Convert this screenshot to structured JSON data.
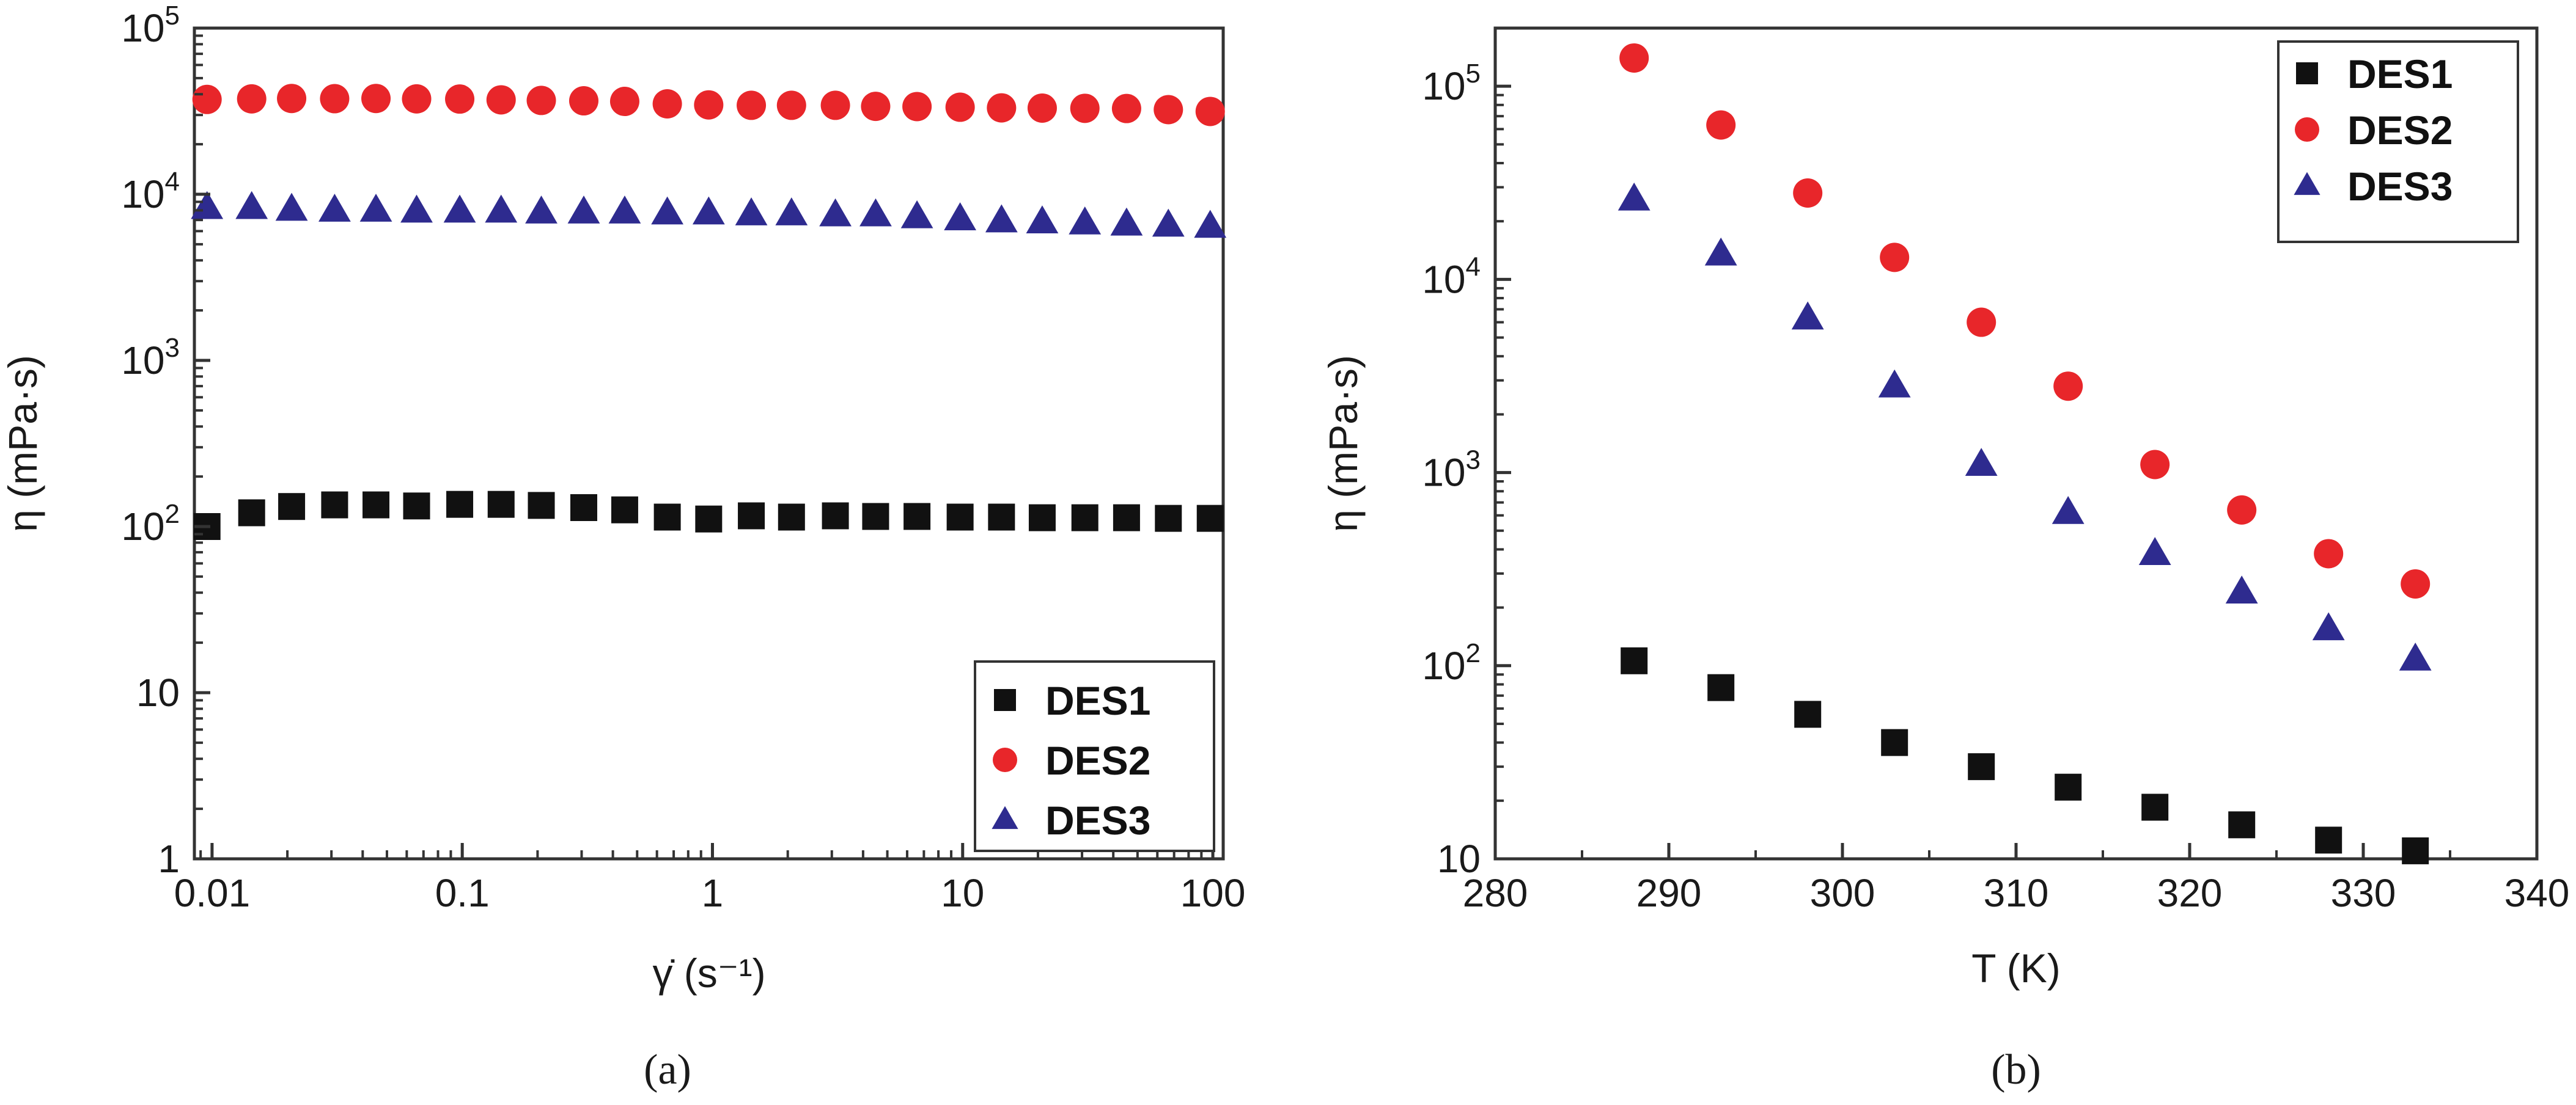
{
  "panels": [
    {
      "caption": "(a)"
    },
    {
      "caption": "(b)"
    }
  ],
  "chart_data": [
    {
      "type": "scatter",
      "xscale": "log",
      "yscale": "log",
      "xlabel": "γ̇ (s⁻¹)",
      "ylabel": "η (mPa·s)",
      "xlim": [
        0.0085,
        110
      ],
      "ylim": [
        1,
        100000
      ],
      "x_ticks": [
        0.01,
        0.1,
        1,
        10,
        100
      ],
      "x_tick_labels": [
        "0.01",
        "0.1",
        "1",
        "10",
        "100"
      ],
      "y_ticks": [
        1,
        10,
        100,
        1000,
        10000,
        100000
      ],
      "y_tick_labels": [
        {
          "base": "1",
          "exp": ""
        },
        {
          "base": "10",
          "exp": ""
        },
        {
          "base": "10",
          "exp": "2"
        },
        {
          "base": "10",
          "exp": "3"
        },
        {
          "base": "10",
          "exp": "4"
        },
        {
          "base": "10",
          "exp": "5"
        }
      ],
      "legend_position": "bottom-right",
      "x": [
        0.00955,
        0.0144,
        0.0208,
        0.0309,
        0.0452,
        0.0657,
        0.0977,
        0.143,
        0.207,
        0.306,
        0.446,
        0.66,
        0.966,
        1.43,
        2.07,
        3.1,
        4.49,
        6.57,
        9.77,
        14.3,
        20.8,
        30.8,
        45.2,
        66.4,
        97.6
      ],
      "series": [
        {
          "name": "DES1",
          "marker": "square",
          "color": "#111111",
          "values": [
            100,
            121,
            132,
            135,
            135,
            133,
            136,
            136,
            134,
            130,
            126,
            114,
            111,
            116,
            114,
            116,
            115,
            115,
            114,
            114,
            113,
            113,
            113,
            112,
            112
          ]
        },
        {
          "name": "DES2",
          "marker": "circle",
          "color": "#e8262a",
          "values": [
            37200,
            37500,
            37700,
            37600,
            37700,
            37500,
            37400,
            37000,
            36700,
            36500,
            36200,
            35000,
            34500,
            34300,
            34300,
            34300,
            33800,
            33700,
            33400,
            33100,
            33000,
            32900,
            32800,
            32300,
            31500
          ]
        },
        {
          "name": "DES3",
          "marker": "triangle",
          "color": "#2e2b8f",
          "values": [
            8300,
            8300,
            8100,
            8000,
            8000,
            7900,
            7900,
            7900,
            7800,
            7800,
            7800,
            7700,
            7700,
            7600,
            7600,
            7500,
            7500,
            7300,
            7100,
            6900,
            6800,
            6700,
            6600,
            6500,
            6400
          ]
        }
      ]
    },
    {
      "type": "scatter",
      "xscale": "linear",
      "yscale": "log",
      "xlabel": "T (K)",
      "ylabel": "η (mPa·s)",
      "xlim": [
        280,
        340
      ],
      "ylim": [
        10,
        200000
      ],
      "x_ticks": [
        280,
        290,
        300,
        310,
        320,
        330,
        340
      ],
      "x_tick_labels": [
        "280",
        "290",
        "300",
        "310",
        "320",
        "330",
        "340"
      ],
      "y_ticks": [
        10,
        100,
        1000,
        10000,
        100000
      ],
      "y_tick_labels": [
        {
          "base": "10",
          "exp": ""
        },
        {
          "base": "10",
          "exp": "2"
        },
        {
          "base": "10",
          "exp": "3"
        },
        {
          "base": "10",
          "exp": "4"
        },
        {
          "base": "10",
          "exp": "5"
        }
      ],
      "legend_position": "top-right",
      "x": [
        288,
        293,
        298,
        303,
        308,
        313,
        318,
        323,
        328,
        333
      ],
      "series": [
        {
          "name": "DES1",
          "marker": "square",
          "color": "#111111",
          "values": [
            106,
            77,
            56,
            40,
            30,
            23.5,
            18.5,
            15,
            12.5,
            11
          ]
        },
        {
          "name": "DES2",
          "marker": "circle",
          "color": "#e8262a",
          "values": [
            140000,
            63000,
            28000,
            13000,
            6000,
            2800,
            1100,
            640,
            380,
            265
          ]
        },
        {
          "name": "DES3",
          "marker": "triangle",
          "color": "#2e2b8f",
          "values": [
            26000,
            13500,
            6300,
            2800,
            1100,
            620,
            380,
            240,
            155,
            108
          ]
        }
      ]
    }
  ]
}
